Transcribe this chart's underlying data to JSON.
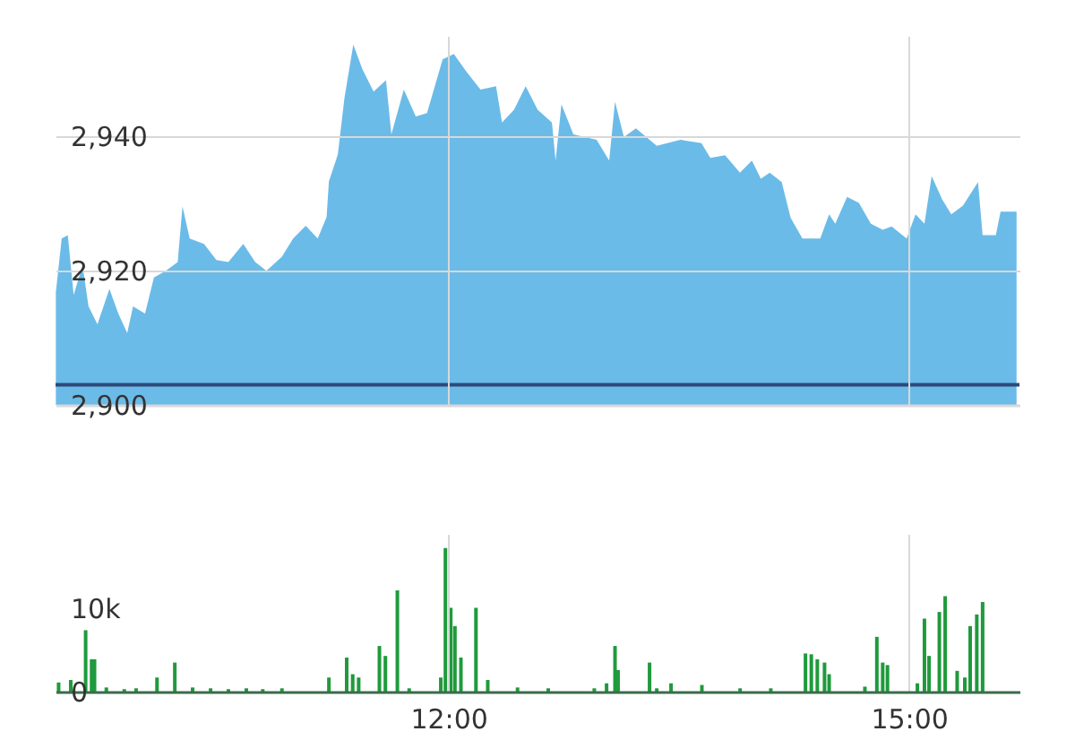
{
  "chart_data": [
    {
      "type": "area",
      "xlim": [
        9.44,
        15.72
      ],
      "ylim": [
        2900,
        2955
      ],
      "yticks": [
        {
          "value": 2900,
          "label": "2,900"
        },
        {
          "value": 2920,
          "label": "2,920"
        },
        {
          "value": 2940,
          "label": "2,940"
        }
      ],
      "xticks": [
        12,
        15
      ],
      "tick_labels": "y",
      "grid": true,
      "legend": false,
      "ref_lines": [
        {
          "axis": "y",
          "value": 2903,
          "color": "#2e4a7a"
        }
      ],
      "series": [
        {
          "color": "#6bbbe8",
          "x": [
            9.442,
            9.48,
            9.52,
            9.558,
            9.616,
            9.655,
            9.713,
            9.791,
            9.849,
            9.907,
            9.945,
            10.023,
            10.081,
            10.159,
            10.236,
            10.267,
            10.314,
            10.407,
            10.488,
            10.566,
            10.663,
            10.741,
            10.814,
            10.915,
            10.988,
            11.07,
            11.148,
            11.206,
            11.221,
            11.279,
            11.322,
            11.38,
            11.438,
            11.512,
            11.593,
            11.628,
            11.709,
            11.787,
            11.86,
            11.962,
            12.035,
            12.116,
            12.209,
            12.31,
            12.349,
            12.427,
            12.503,
            12.581,
            12.674,
            12.698,
            12.736,
            12.814,
            12.965,
            13.047,
            13.085,
            13.143,
            13.221,
            13.357,
            13.512,
            13.648,
            13.706,
            13.802,
            13.899,
            13.977,
            14.035,
            14.093,
            14.171,
            14.229,
            14.306,
            14.422,
            14.48,
            14.52,
            14.597,
            14.674,
            14.752,
            14.829,
            14.887,
            14.985,
            15.043,
            15.101,
            15.148,
            15.217,
            15.276,
            15.352,
            15.45,
            15.48,
            15.566,
            15.597,
            15.701
          ],
          "values": [
            2916.8,
            2924.8,
            2925.3,
            2916.4,
            2920.8,
            2914.7,
            2912,
            2917.3,
            2913.6,
            2910.7,
            2914.7,
            2913.6,
            2919,
            2920,
            2921.3,
            2929.6,
            2924.8,
            2924,
            2921.6,
            2921.3,
            2924,
            2921.3,
            2920,
            2922.1,
            2924.8,
            2926.7,
            2924.8,
            2928,
            2933.3,
            2937.3,
            2945.7,
            2953.7,
            2950.1,
            2946.7,
            2948.4,
            2940.3,
            2947,
            2943,
            2943.5,
            2951.5,
            2952.3,
            2949.7,
            2947,
            2947.5,
            2942.1,
            2944,
            2947.5,
            2944,
            2942.1,
            2936.4,
            2944.8,
            2940.3,
            2939.5,
            2936.4,
            2945.2,
            2939.9,
            2941.2,
            2938.6,
            2939.5,
            2939,
            2936.8,
            2937.2,
            2934.6,
            2936.4,
            2933.7,
            2934.6,
            2933.2,
            2927.9,
            2924.8,
            2924.8,
            2928.4,
            2927,
            2931,
            2930.1,
            2927,
            2926.1,
            2926.6,
            2924.8,
            2928.4,
            2927,
            2934.1,
            2930.6,
            2928.4,
            2929.7,
            2933.2,
            2925.3,
            2925.3,
            2928.8,
            2928.8
          ]
        }
      ]
    },
    {
      "type": "bar",
      "xlim": [
        9.44,
        15.72
      ],
      "ylim": [
        0,
        19000
      ],
      "yticks": [
        0,
        {
          "value": 10000,
          "label": "10k"
        }
      ],
      "xticks": [
        {
          "value": 12,
          "label": "12:00"
        },
        {
          "value": 15,
          "label": "15:00"
        }
      ],
      "grid": "x",
      "legend": false,
      "series": [
        {
          "color": "#1f9a3c",
          "x": [
            9.46,
            9.539,
            9.636,
            9.675,
            9.694,
            9.771,
            9.888,
            9.965,
            10.101,
            10.217,
            10.333,
            10.45,
            10.566,
            10.683,
            10.79,
            10.915,
            11.221,
            11.337,
            11.376,
            11.415,
            11.55,
            11.589,
            11.667,
            11.744,
            11.95,
            11.98,
            12.015,
            12.042,
            12.081,
            12.179,
            12.256,
            12.45,
            12.65,
            12.95,
            13.03,
            13.085,
            13.105,
            13.31,
            13.357,
            13.45,
            13.651,
            13.9,
            14.1,
            14.326,
            14.364,
            14.403,
            14.45,
            14.48,
            14.713,
            14.791,
            14.829,
            14.86,
            15.055,
            15.101,
            15.131,
            15.198,
            15.236,
            15.314,
            15.364,
            15.399,
            15.442,
            15.48
          ],
          "values": [
            1100,
            1400,
            7400,
            3900,
            3900,
            500,
            300,
            400,
            1700,
            3500,
            500,
            400,
            300,
            400,
            300,
            400,
            1700,
            4100,
            2100,
            1700,
            5500,
            4300,
            12200,
            400,
            1700,
            17300,
            10100,
            7900,
            4100,
            10100,
            1400,
            500,
            400,
            400,
            1000,
            5500,
            2600,
            3500,
            400,
            1000,
            800,
            400,
            400,
            4600,
            4500,
            3900,
            3500,
            2100,
            600,
            6600,
            3500,
            3200,
            1000,
            8800,
            4300,
            9600,
            11500,
            2500,
            1700,
            7900,
            9300,
            10800
          ]
        }
      ]
    }
  ]
}
